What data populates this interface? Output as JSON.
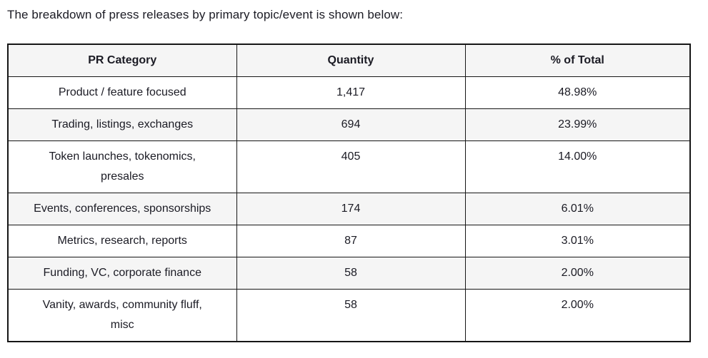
{
  "page": {
    "intro_text": "The breakdown of press releases by primary topic/event is shown below:"
  },
  "table": {
    "columns": [
      "PR Category",
      "Quantity",
      "% of Total"
    ],
    "rows": [
      {
        "category": "Product / feature focused",
        "quantity": "1,417",
        "percent": "48.98%"
      },
      {
        "category": "Trading, listings, exchanges",
        "quantity": "694",
        "percent": "23.99%"
      },
      {
        "category": "Token launches, tokenomics, presales",
        "quantity": "405",
        "percent": "14.00%"
      },
      {
        "category": "Events, conferences, sponsorships",
        "quantity": "174",
        "percent": "6.01%"
      },
      {
        "category": "Metrics, research, reports",
        "quantity": "87",
        "percent": "3.01%"
      },
      {
        "category": "Funding, VC, corporate finance",
        "quantity": "58",
        "percent": "2.00%"
      },
      {
        "category": "Vanity, awards, community fluff, misc",
        "quantity": "58",
        "percent": "2.00%"
      }
    ]
  },
  "chart_data": {
    "type": "table",
    "title": "The breakdown of press releases by primary topic/event is shown below:",
    "columns": [
      "PR Category",
      "Quantity",
      "% of Total"
    ],
    "categories": [
      "Product / feature focused",
      "Trading, listings, exchanges",
      "Token launches, tokenomics, presales",
      "Events, conferences, sponsorships",
      "Metrics, research, reports",
      "Funding, VC, corporate finance",
      "Vanity, awards, community fluff, misc"
    ],
    "quantities": [
      1417,
      694,
      405,
      174,
      87,
      58,
      58
    ],
    "percent_of_total": [
      48.98,
      23.99,
      14.0,
      6.01,
      3.01,
      2.0,
      2.0
    ]
  },
  "colors": {
    "text": "#1b1b24",
    "border": "#161616",
    "header_bg": "#f5f5f5",
    "row_alt_bg": "#f5f5f5",
    "row_bg": "#ffffff",
    "page_bg": "#ffffff"
  }
}
